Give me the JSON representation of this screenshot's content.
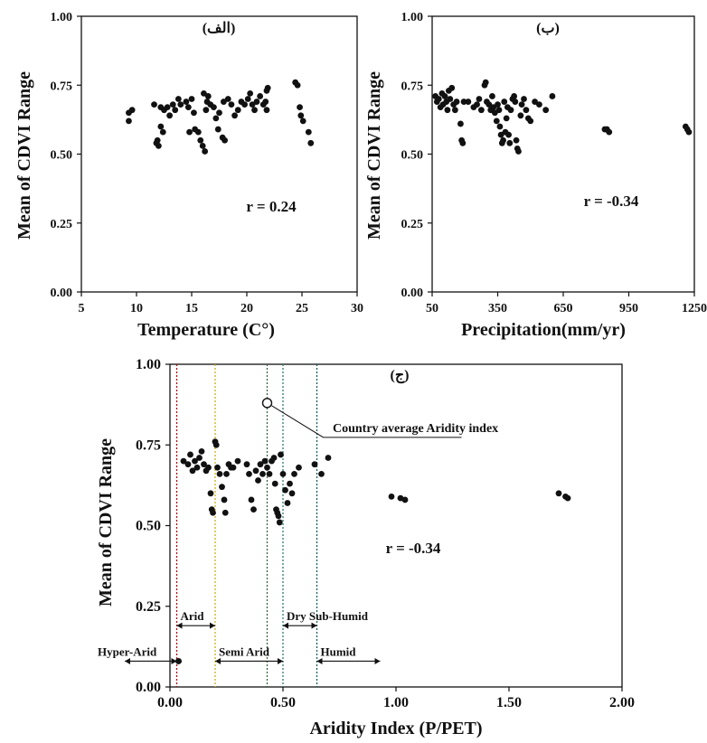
{
  "chart_data": [
    {
      "id": "a",
      "type": "scatter",
      "panel_label": "(الف)",
      "title": "",
      "xlabel": "Temperature (C°)",
      "ylabel": "Mean of CDVI Range",
      "xlim": [
        5,
        30
      ],
      "ylim": [
        0,
        1
      ],
      "x_ticks": [
        "5",
        "10",
        "15",
        "20",
        "25",
        "30"
      ],
      "y_ticks": [
        "0.00",
        "0.25",
        "0.50",
        "0.75",
        "1.00"
      ],
      "annotation": "r = 0.24",
      "grid": false,
      "points": [
        [
          9.3,
          0.65
        ],
        [
          9.6,
          0.66
        ],
        [
          9.3,
          0.62
        ],
        [
          11.6,
          0.68
        ],
        [
          11.8,
          0.54
        ],
        [
          12.0,
          0.53
        ],
        [
          11.9,
          0.55
        ],
        [
          12.2,
          0.6
        ],
        [
          12.4,
          0.58
        ],
        [
          12.5,
          0.66
        ],
        [
          12.8,
          0.67
        ],
        [
          13.0,
          0.64
        ],
        [
          12.2,
          0.67
        ],
        [
          13.3,
          0.68
        ],
        [
          13.5,
          0.66
        ],
        [
          13.8,
          0.7
        ],
        [
          14.0,
          0.68
        ],
        [
          14.5,
          0.69
        ],
        [
          14.7,
          0.67
        ],
        [
          15.0,
          0.7
        ],
        [
          15.2,
          0.65
        ],
        [
          14.8,
          0.58
        ],
        [
          15.3,
          0.59
        ],
        [
          15.6,
          0.58
        ],
        [
          15.8,
          0.55
        ],
        [
          16.0,
          0.53
        ],
        [
          16.2,
          0.51
        ],
        [
          16.3,
          0.66
        ],
        [
          16.4,
          0.69
        ],
        [
          16.5,
          0.71
        ],
        [
          16.1,
          0.72
        ],
        [
          16.7,
          0.68
        ],
        [
          17.0,
          0.67
        ],
        [
          17.2,
          0.63
        ],
        [
          17.4,
          0.59
        ],
        [
          17.5,
          0.65
        ],
        [
          17.8,
          0.56
        ],
        [
          18.0,
          0.55
        ],
        [
          17.9,
          0.69
        ],
        [
          18.3,
          0.7
        ],
        [
          18.6,
          0.68
        ],
        [
          18.9,
          0.64
        ],
        [
          19.2,
          0.66
        ],
        [
          19.5,
          0.69
        ],
        [
          19.8,
          0.68
        ],
        [
          20.1,
          0.7
        ],
        [
          20.3,
          0.72
        ],
        [
          20.5,
          0.68
        ],
        [
          20.7,
          0.66
        ],
        [
          20.9,
          0.69
        ],
        [
          21.2,
          0.71
        ],
        [
          21.5,
          0.68
        ],
        [
          21.8,
          0.73
        ],
        [
          21.9,
          0.74
        ],
        [
          21.7,
          0.69
        ],
        [
          21.8,
          0.66
        ],
        [
          24.4,
          0.76
        ],
        [
          24.6,
          0.75
        ],
        [
          24.8,
          0.67
        ],
        [
          24.9,
          0.64
        ],
        [
          25.1,
          0.62
        ],
        [
          25.6,
          0.58
        ],
        [
          25.8,
          0.54
        ]
      ]
    },
    {
      "id": "b",
      "type": "scatter",
      "panel_label": "(ب)",
      "title": "",
      "xlabel": "Precipitation(mm/yr)",
      "ylabel": "Mean of CDVI Range",
      "xlim": [
        50,
        1250
      ],
      "ylim": [
        0,
        1
      ],
      "x_ticks": [
        "50",
        "350",
        "650",
        "950",
        "1250"
      ],
      "y_ticks": [
        "0.00",
        "0.25",
        "0.50",
        "0.75",
        "1.00"
      ],
      "annotation": "r = -0.34",
      "grid": false,
      "points": [
        [
          65,
          0.71
        ],
        [
          72,
          0.69
        ],
        [
          80,
          0.7
        ],
        [
          88,
          0.67
        ],
        [
          95,
          0.72
        ],
        [
          100,
          0.68
        ],
        [
          108,
          0.71
        ],
        [
          115,
          0.69
        ],
        [
          120,
          0.66
        ],
        [
          126,
          0.73
        ],
        [
          132,
          0.7
        ],
        [
          140,
          0.74
        ],
        [
          148,
          0.68
        ],
        [
          155,
          0.66
        ],
        [
          162,
          0.69
        ],
        [
          180,
          0.61
        ],
        [
          185,
          0.55
        ],
        [
          190,
          0.54
        ],
        [
          195,
          0.69
        ],
        [
          215,
          0.69
        ],
        [
          240,
          0.67
        ],
        [
          255,
          0.68
        ],
        [
          265,
          0.7
        ],
        [
          275,
          0.66
        ],
        [
          290,
          0.75
        ],
        [
          295,
          0.76
        ],
        [
          300,
          0.69
        ],
        [
          310,
          0.68
        ],
        [
          318,
          0.66
        ],
        [
          325,
          0.71
        ],
        [
          330,
          0.67
        ],
        [
          337,
          0.65
        ],
        [
          345,
          0.62
        ],
        [
          350,
          0.68
        ],
        [
          356,
          0.66
        ],
        [
          360,
          0.6
        ],
        [
          365,
          0.57
        ],
        [
          370,
          0.54
        ],
        [
          375,
          0.55
        ],
        [
          380,
          0.69
        ],
        [
          385,
          0.58
        ],
        [
          390,
          0.63
        ],
        [
          395,
          0.67
        ],
        [
          400,
          0.57
        ],
        [
          405,
          0.54
        ],
        [
          410,
          0.66
        ],
        [
          418,
          0.7
        ],
        [
          425,
          0.71
        ],
        [
          430,
          0.69
        ],
        [
          435,
          0.55
        ],
        [
          440,
          0.52
        ],
        [
          445,
          0.51
        ],
        [
          455,
          0.64
        ],
        [
          460,
          0.68
        ],
        [
          470,
          0.7
        ],
        [
          480,
          0.66
        ],
        [
          490,
          0.63
        ],
        [
          500,
          0.62
        ],
        [
          520,
          0.69
        ],
        [
          540,
          0.68
        ],
        [
          570,
          0.66
        ],
        [
          600,
          0.71
        ],
        [
          840,
          0.59
        ],
        [
          850,
          0.59
        ],
        [
          860,
          0.58
        ],
        [
          1210,
          0.6
        ],
        [
          1218,
          0.59
        ],
        [
          1225,
          0.58
        ]
      ]
    },
    {
      "id": "c",
      "type": "scatter",
      "panel_label": "(ج)",
      "title": "",
      "xlabel": "Aridity Index (P/PET)",
      "ylabel": "Mean of CDVI Range",
      "xlim": [
        0,
        2
      ],
      "ylim": [
        0,
        1
      ],
      "x_ticks": [
        "0.00",
        "0.50",
        "1.00",
        "1.50",
        "2.00"
      ],
      "y_ticks": [
        "0.00",
        "0.25",
        "0.50",
        "0.75",
        "1.00"
      ],
      "annotation": "r = -0.34",
      "grid": false,
      "country_average": {
        "x": 0.43,
        "y": 0.88,
        "label": "Country average Aridity index"
      },
      "zone_lines": [
        {
          "x": 0.03,
          "color": "#8b1a1a"
        },
        {
          "x": 0.2,
          "color": "#d4b000"
        },
        {
          "x": 0.43,
          "color": "#2e6b3b"
        },
        {
          "x": 0.5,
          "color": "#2e7b6f"
        },
        {
          "x": 0.65,
          "color": "#1f5a5a"
        }
      ],
      "zones": [
        {
          "label": "Hyper-Arid",
          "from": -0.2,
          "to": 0.03,
          "y": 0.08
        },
        {
          "label": "Arid",
          "from": 0.03,
          "to": 0.2,
          "y": 0.19
        },
        {
          "label": "Semi Arid",
          "from": 0.2,
          "to": 0.5,
          "y": 0.08
        },
        {
          "label": "Dry Sub-Humid",
          "from": 0.5,
          "to": 0.65,
          "y": 0.19
        },
        {
          "label": "Humid",
          "from": 0.65,
          "to": 0.93,
          "y": 0.08
        }
      ],
      "points": [
        [
          0.06,
          0.7
        ],
        [
          0.08,
          0.69
        ],
        [
          0.09,
          0.72
        ],
        [
          0.1,
          0.67
        ],
        [
          0.11,
          0.7
        ],
        [
          0.12,
          0.68
        ],
        [
          0.13,
          0.71
        ],
        [
          0.14,
          0.73
        ],
        [
          0.15,
          0.69
        ],
        [
          0.16,
          0.67
        ],
        [
          0.17,
          0.68
        ],
        [
          0.18,
          0.6
        ],
        [
          0.185,
          0.55
        ],
        [
          0.19,
          0.54
        ],
        [
          0.2,
          0.76
        ],
        [
          0.205,
          0.75
        ],
        [
          0.21,
          0.68
        ],
        [
          0.22,
          0.66
        ],
        [
          0.23,
          0.62
        ],
        [
          0.24,
          0.58
        ],
        [
          0.245,
          0.54
        ],
        [
          0.25,
          0.66
        ],
        [
          0.26,
          0.69
        ],
        [
          0.27,
          0.68
        ],
        [
          0.28,
          0.68
        ],
        [
          0.3,
          0.7
        ],
        [
          0.34,
          0.69
        ],
        [
          0.35,
          0.66
        ],
        [
          0.36,
          0.58
        ],
        [
          0.37,
          0.55
        ],
        [
          0.38,
          0.67
        ],
        [
          0.39,
          0.64
        ],
        [
          0.4,
          0.69
        ],
        [
          0.41,
          0.66
        ],
        [
          0.42,
          0.7
        ],
        [
          0.43,
          0.68
        ],
        [
          0.44,
          0.66
        ],
        [
          0.45,
          0.7
        ],
        [
          0.46,
          0.71
        ],
        [
          0.465,
          0.63
        ],
        [
          0.47,
          0.55
        ],
        [
          0.475,
          0.54
        ],
        [
          0.48,
          0.53
        ],
        [
          0.485,
          0.51
        ],
        [
          0.49,
          0.72
        ],
        [
          0.5,
          0.66
        ],
        [
          0.51,
          0.61
        ],
        [
          0.52,
          0.57
        ],
        [
          0.53,
          0.63
        ],
        [
          0.54,
          0.6
        ],
        [
          0.55,
          0.66
        ],
        [
          0.57,
          0.68
        ],
        [
          0.64,
          0.69
        ],
        [
          0.67,
          0.66
        ],
        [
          0.7,
          0.71
        ],
        [
          0.98,
          0.59
        ],
        [
          1.02,
          0.585
        ],
        [
          1.04,
          0.58
        ],
        [
          1.72,
          0.6
        ],
        [
          1.75,
          0.59
        ],
        [
          1.76,
          0.585
        ]
      ]
    }
  ]
}
